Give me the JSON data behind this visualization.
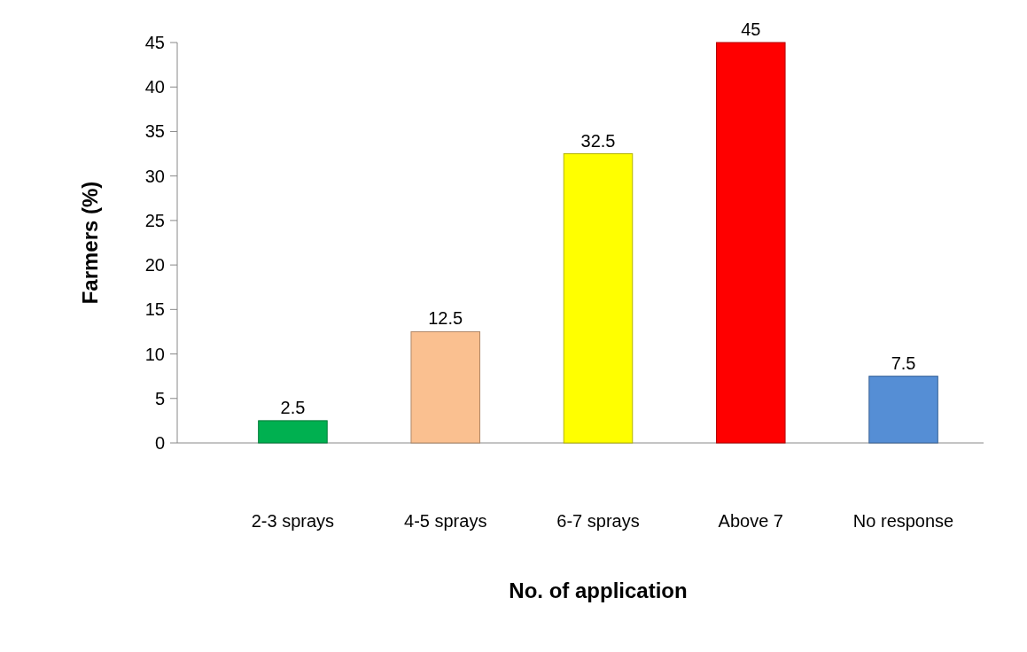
{
  "chart_data": {
    "type": "bar",
    "xlabel": "No. of application",
    "ylabel": "Farmers (%)",
    "categories": [
      "2-3 sprays",
      "4-5 sprays",
      "6-7 sprays",
      "Above 7",
      "No response"
    ],
    "values": [
      2.5,
      12.5,
      32.5,
      45,
      7.5
    ],
    "colors": [
      "#00b050",
      "#fac090",
      "#ffff00",
      "#ff0000",
      "#558ed5"
    ],
    "ylim": [
      0,
      45
    ],
    "yticks": [
      0,
      5,
      10,
      15,
      20,
      25,
      30,
      35,
      40,
      45
    ],
    "data_labels": true
  }
}
